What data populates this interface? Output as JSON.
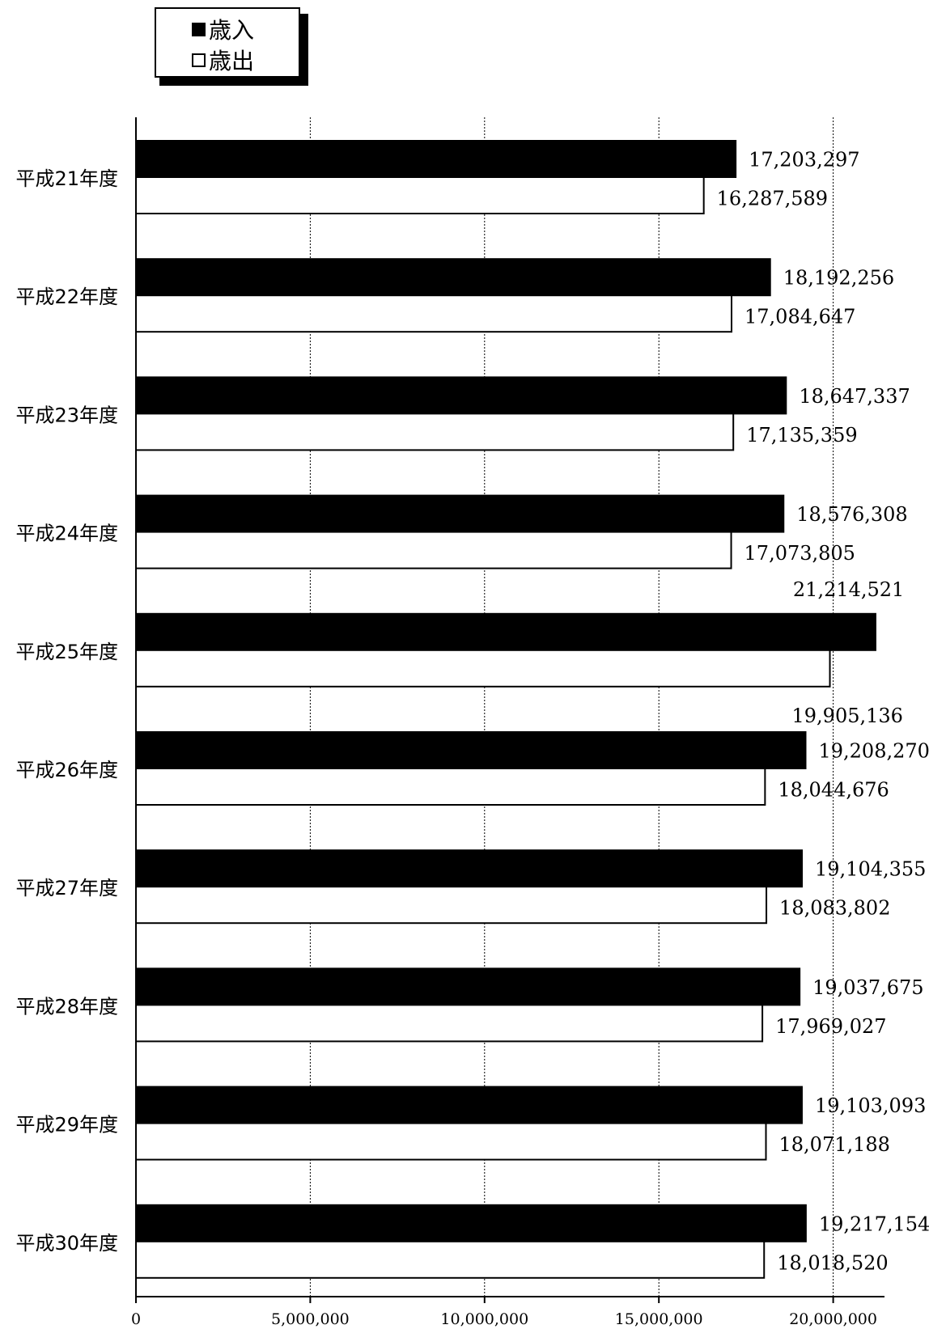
{
  "chart_data": {
    "type": "bar",
    "orientation": "horizontal",
    "categories": [
      "平成21年度",
      "平成22年度",
      "平成23年度",
      "平成24年度",
      "平成25年度",
      "平成26年度",
      "平成27年度",
      "平成28年度",
      "平成29年度",
      "平成30年度"
    ],
    "series": [
      {
        "name": "歳入",
        "color": "#000000",
        "values": [
          17203297,
          18192256,
          18647337,
          18576308,
          21214521,
          19208270,
          19104355,
          19037675,
          19103093,
          19217154
        ],
        "labels": [
          "17,203,297",
          "18,192,256",
          "18,647,337",
          "18,576,308",
          "21,214,521",
          "19,208,270",
          "19,104,355",
          "19,037,675",
          "19,103,093",
          "19,217,154"
        ]
      },
      {
        "name": "歳出",
        "color": "#ffffff",
        "values": [
          16287589,
          17084647,
          17135359,
          17073805,
          19905136,
          18044676,
          18083802,
          17969027,
          18071188,
          18018520
        ],
        "labels": [
          "16,287,589",
          "17,084,647",
          "17,135,359",
          "17,073,805",
          "19,905,136",
          "18,044,676",
          "18,083,802",
          "17,969,027",
          "18,071,188",
          "18,018,520"
        ]
      }
    ],
    "xlim": [
      0,
      21500000
    ],
    "xticks": [
      0,
      5000000,
      10000000,
      15000000,
      20000000
    ],
    "xtick_labels": [
      "0",
      "5,000,000",
      "10,000,000",
      "15,000,000",
      "20,000,000"
    ],
    "grid": "vertical dotted",
    "legend": {
      "position": "top-left",
      "items": [
        "歳入",
        "歳出"
      ]
    }
  }
}
